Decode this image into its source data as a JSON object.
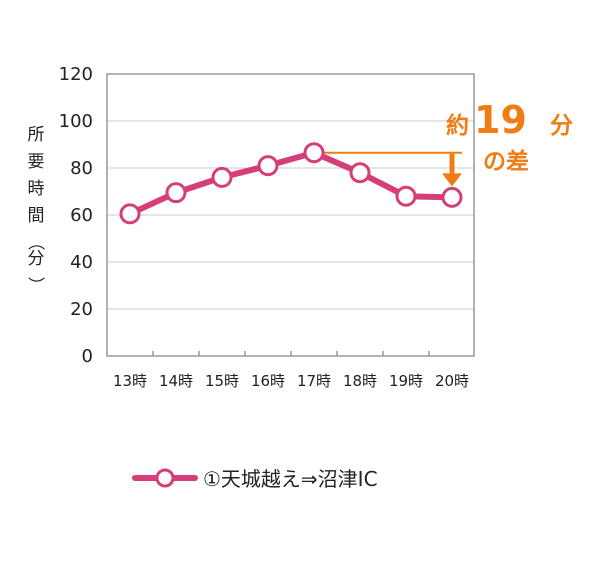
{
  "chart_data": {
    "type": "line",
    "categories": [
      "13時",
      "14時",
      "15時",
      "16時",
      "17時",
      "18時",
      "19時",
      "20時"
    ],
    "series": [
      {
        "name": "①天城越え⇒沼津IC",
        "values": [
          60.5,
          69.5,
          76,
          81,
          86.5,
          78,
          68,
          67.5
        ]
      }
    ],
    "ylabel": "所要時間（分）",
    "yticks": [
      "0",
      "20",
      "40",
      "60",
      "80",
      "100",
      "120"
    ],
    "ylim": [
      0,
      120
    ],
    "grid": true,
    "legend_position": "bottom",
    "annotation": {
      "prefix": "約",
      "number": "19",
      "unit": "分",
      "suffix": "の差",
      "from_category": "17時",
      "to_category": "20時"
    },
    "colors": {
      "series": "#d63e78",
      "annotation": "#ef7d14",
      "grid": "#cccccc",
      "frame": "#999999"
    }
  }
}
